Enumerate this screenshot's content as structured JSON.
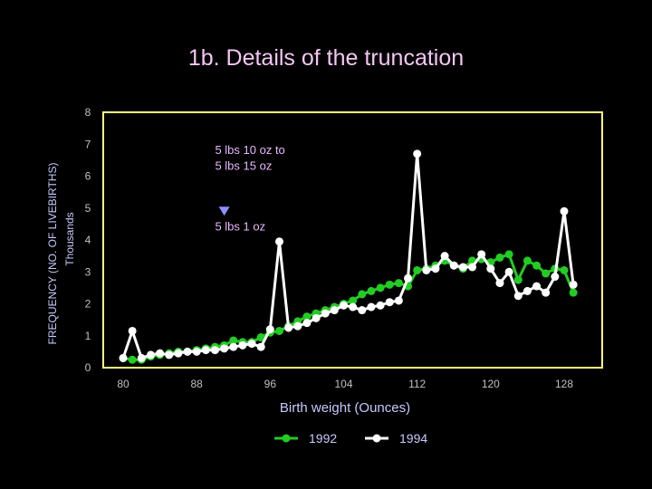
{
  "chart_data": {
    "type": "line",
    "title": "1b. Details of the truncation",
    "xlabel": "Birth weight (Ounces)",
    "ylabel": "FREQUENCY (NO. OF LIVEBIRTHS)",
    "ylabel2": "Thousands",
    "xlim": [
      79,
      131
    ],
    "ylim": [
      0,
      8
    ],
    "xticks": [
      80,
      88,
      96,
      104,
      112,
      120,
      128
    ],
    "yticks": [
      0,
      1,
      2,
      3,
      4,
      5,
      6,
      7,
      8
    ],
    "grid": false,
    "legend_position": "bottom-center",
    "colors": {
      "background": "#000000",
      "axis": "#ffff80",
      "tick_text": "#c0c0c0",
      "label_text": "#c8c8ff",
      "title": "#f3c6f3",
      "annotation": "#e8b8ff",
      "marker": "#9090ff"
    },
    "annotations": [
      {
        "text": "5 lbs 10 oz to",
        "x": 90,
        "y": 6.7
      },
      {
        "text": "5 lbs 15 oz",
        "x": 90,
        "y": 6.2
      },
      {
        "text": "5 lbs 1 oz",
        "x": 90,
        "y": 4.3
      }
    ],
    "marker_at": {
      "x": 91,
      "y": 4.9
    },
    "series": [
      {
        "name": "1992",
        "color": "#22cc22",
        "x": [
          80,
          81,
          82,
          83,
          84,
          85,
          86,
          87,
          88,
          89,
          90,
          91,
          92,
          93,
          94,
          95,
          96,
          97,
          98,
          99,
          100,
          101,
          102,
          103,
          104,
          105,
          106,
          107,
          108,
          109,
          110,
          111,
          112,
          113,
          114,
          115,
          116,
          117,
          118,
          119,
          120,
          121,
          122,
          123,
          124,
          125,
          126,
          127,
          128,
          129
        ],
        "y": [
          0.3,
          0.25,
          0.25,
          0.35,
          0.4,
          0.45,
          0.5,
          0.5,
          0.55,
          0.6,
          0.65,
          0.7,
          0.85,
          0.8,
          0.8,
          0.95,
          1.1,
          1.15,
          1.3,
          1.45,
          1.6,
          1.7,
          1.8,
          1.9,
          2.0,
          2.1,
          2.3,
          2.4,
          2.5,
          2.6,
          2.65,
          2.55,
          3.05,
          3.1,
          3.2,
          3.35,
          3.2,
          3.1,
          3.35,
          3.4,
          3.3,
          3.45,
          3.55,
          2.75,
          3.35,
          3.2,
          2.95,
          3.1,
          3.05,
          2.35
        ]
      },
      {
        "name": "1994",
        "color": "#ffffff",
        "x": [
          80,
          81,
          82,
          83,
          84,
          85,
          86,
          87,
          88,
          89,
          90,
          91,
          92,
          93,
          94,
          95,
          96,
          97,
          98,
          99,
          100,
          101,
          102,
          103,
          104,
          105,
          106,
          107,
          108,
          109,
          110,
          111,
          112,
          113,
          114,
          115,
          116,
          117,
          118,
          119,
          120,
          121,
          122,
          123,
          124,
          125,
          126,
          127,
          128,
          129
        ],
        "y": [
          0.3,
          1.15,
          0.3,
          0.4,
          0.45,
          0.4,
          0.45,
          0.5,
          0.5,
          0.55,
          0.55,
          0.6,
          0.65,
          0.7,
          0.75,
          0.65,
          1.2,
          3.95,
          1.25,
          1.3,
          1.4,
          1.55,
          1.7,
          1.8,
          1.95,
          1.9,
          1.8,
          1.9,
          1.95,
          2.05,
          2.1,
          2.8,
          6.7,
          3.05,
          3.1,
          3.5,
          3.2,
          3.15,
          3.15,
          3.55,
          3.1,
          2.65,
          3.0,
          2.25,
          2.4,
          2.55,
          2.35,
          2.85,
          4.9,
          2.6
        ]
      }
    ]
  }
}
